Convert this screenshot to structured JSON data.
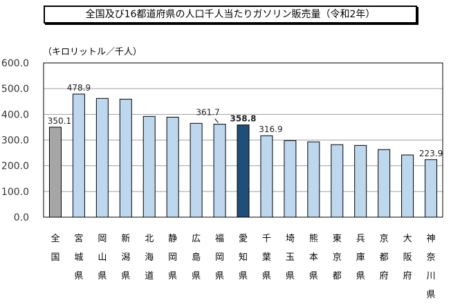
{
  "chart_data": {
    "type": "bar",
    "title": "全国及び16都道府県の人口千人当たりガソリン販売量（令和2年）",
    "ylabel": "（キロリットル／千人）",
    "ylim": [
      0,
      600
    ],
    "yticks": [
      "0.0",
      "100.0",
      "200.0",
      "300.0",
      "400.0",
      "500.0",
      "600.0"
    ],
    "grid": true,
    "categories": [
      "全国",
      "宮城県",
      "岡山県",
      "新潟県",
      "北海道",
      "静岡県",
      "広島県",
      "福岡県",
      "愛知県",
      "千葉県",
      "埼玉県",
      "熊本県",
      "東京都",
      "兵庫県",
      "京都府",
      "大阪府",
      "神奈川県"
    ],
    "values": [
      350.1,
      478.9,
      462,
      459,
      392,
      389,
      365,
      361.7,
      358.8,
      316.9,
      298,
      293,
      282,
      279,
      263,
      242,
      223.9
    ],
    "data_labels": {
      "0": "350.1",
      "1": "478.9",
      "7": "361.7",
      "8": "358.8",
      "9": "316.9",
      "16": "223.9"
    },
    "colors": {
      "national": "#a6a6a6",
      "highlight": "#1f4e79",
      "default": "#bdd7ee",
      "grid": "#a0a0a0"
    },
    "highlight_index": 8,
    "national_index": 0
  }
}
